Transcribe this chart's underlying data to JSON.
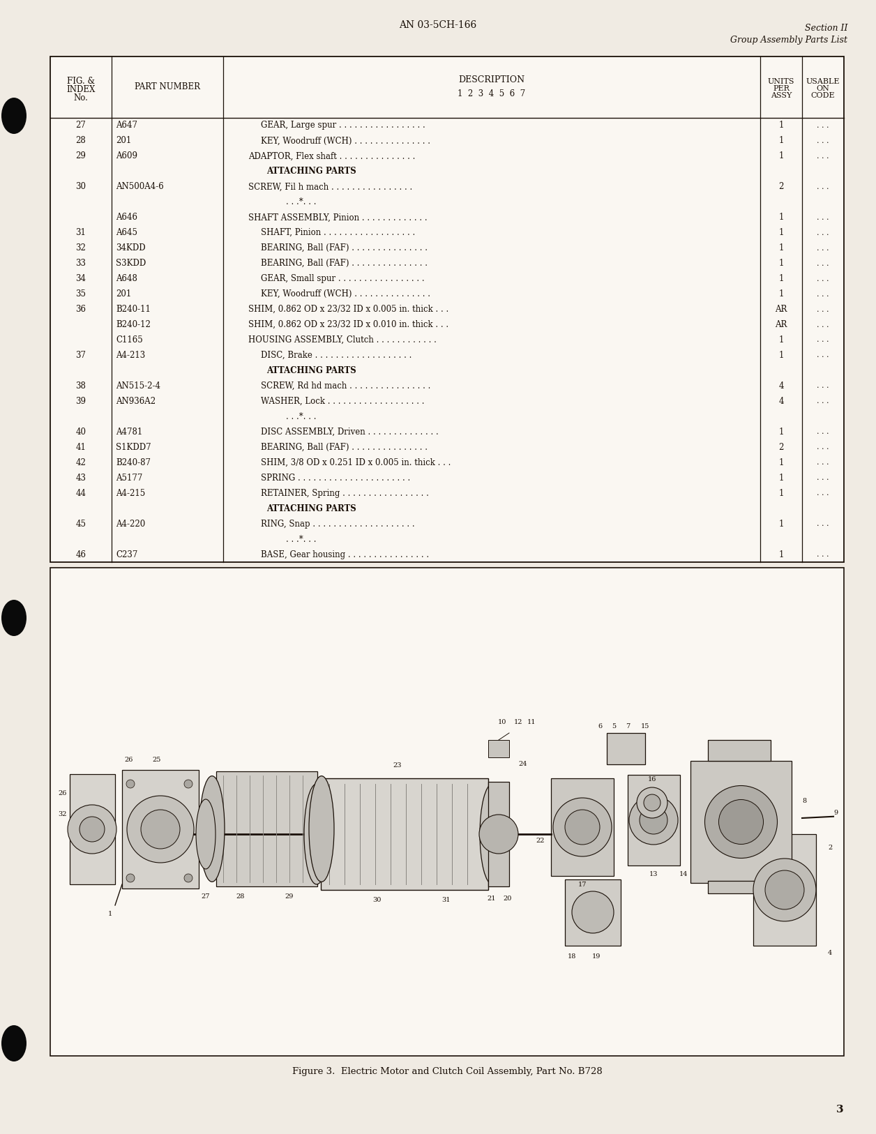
{
  "page_bg": "#f0ebe3",
  "table_bg": "#faf7f2",
  "header_doc_num": "AN 03-5CH-166",
  "header_section": "Section II",
  "header_section_sub": "Group Assembly Parts List",
  "page_number": "3",
  "rows": [
    {
      "fig": "27",
      "part": "A647",
      "ind": 3,
      "desc": "GEAR, Large spur . . . . . . . . . . . . . . . . .",
      "units": "1",
      "usable": ". . ."
    },
    {
      "fig": "28",
      "part": "201",
      "ind": 3,
      "desc": "KEY, Woodruff (WCH) . . . . . . . . . . . . . . .",
      "units": "1",
      "usable": ". . ."
    },
    {
      "fig": "29",
      "part": "A609",
      "ind": 2,
      "desc": "ADAPTOR, Flex shaft . . . . . . . . . . . . . . .",
      "units": "1",
      "usable": ". . ."
    },
    {
      "fig": "",
      "part": "",
      "ind": 4,
      "desc": "ATTACHING PARTS",
      "units": "",
      "usable": ""
    },
    {
      "fig": "30",
      "part": "AN500A4-6",
      "ind": 2,
      "desc": "SCREW, Fil h mach . . . . . . . . . . . . . . . .",
      "units": "2",
      "usable": ". . ."
    },
    {
      "fig": "",
      "part": "",
      "ind": 0,
      "desc": "---*---",
      "units": "",
      "usable": ""
    },
    {
      "fig": "",
      "part": "A646",
      "ind": 2,
      "desc": "SHAFT ASSEMBLY, Pinion . . . . . . . . . . . . .",
      "units": "1",
      "usable": ". . ."
    },
    {
      "fig": "31",
      "part": "A645",
      "ind": 3,
      "desc": "SHAFT, Pinion . . . . . . . . . . . . . . . . . .",
      "units": "1",
      "usable": ". . ."
    },
    {
      "fig": "32",
      "part": "34KDD",
      "ind": 3,
      "desc": "BEARING, Ball (FAF) . . . . . . . . . . . . . . .",
      "units": "1",
      "usable": ". . ."
    },
    {
      "fig": "33",
      "part": "S3KDD",
      "ind": 3,
      "desc": "BEARING, Ball (FAF) . . . . . . . . . . . . . . .",
      "units": "1",
      "usable": ". . ."
    },
    {
      "fig": "34",
      "part": "A648",
      "ind": 3,
      "desc": "GEAR, Small spur . . . . . . . . . . . . . . . . .",
      "units": "1",
      "usable": ". . ."
    },
    {
      "fig": "35",
      "part": "201",
      "ind": 3,
      "desc": "KEY, Woodruff (WCH) . . . . . . . . . . . . . . .",
      "units": "1",
      "usable": ". . ."
    },
    {
      "fig": "36",
      "part": "B240-11",
      "ind": 2,
      "desc": "SHIM, 0.862 OD x 23/32 ID x 0.005 in. thick . . .",
      "units": "AR",
      "usable": ". . ."
    },
    {
      "fig": "",
      "part": "B240-12",
      "ind": 2,
      "desc": "SHIM, 0.862 OD x 23/32 ID x 0.010 in. thick . . .",
      "units": "AR",
      "usable": ". . ."
    },
    {
      "fig": "",
      "part": "C1165",
      "ind": 2,
      "desc": "HOUSING ASSEMBLY, Clutch . . . . . . . . . . . .",
      "units": "1",
      "usable": ". . ."
    },
    {
      "fig": "37",
      "part": "A4-213",
      "ind": 3,
      "desc": "DISC, Brake . . . . . . . . . . . . . . . . . . .",
      "units": "1",
      "usable": ". . ."
    },
    {
      "fig": "",
      "part": "",
      "ind": 4,
      "desc": "ATTACHING PARTS",
      "units": "",
      "usable": ""
    },
    {
      "fig": "38",
      "part": "AN515-2-4",
      "ind": 3,
      "desc": "SCREW, Rd hd mach . . . . . . . . . . . . . . . .",
      "units": "4",
      "usable": ". . ."
    },
    {
      "fig": "39",
      "part": "AN936A2",
      "ind": 3,
      "desc": "WASHER, Lock . . . . . . . . . . . . . . . . . . .",
      "units": "4",
      "usable": ". . ."
    },
    {
      "fig": "",
      "part": "",
      "ind": 0,
      "desc": "---*---",
      "units": "",
      "usable": ""
    },
    {
      "fig": "40",
      "part": "A4781",
      "ind": 3,
      "desc": "DISC ASSEMBLY, Driven . . . . . . . . . . . . . .",
      "units": "1",
      "usable": ". . ."
    },
    {
      "fig": "41",
      "part": "S1KDD7",
      "ind": 3,
      "desc": "BEARING, Ball (FAF) . . . . . . . . . . . . . . .",
      "units": "2",
      "usable": ". . ."
    },
    {
      "fig": "42",
      "part": "B240-87",
      "ind": 3,
      "desc": "SHIM, 3/8 OD x 0.251 ID x 0.005 in. thick . . .",
      "units": "1",
      "usable": ". . ."
    },
    {
      "fig": "43",
      "part": "A5177",
      "ind": 3,
      "desc": "SPRING . . . . . . . . . . . . . . . . . . . . . .",
      "units": "1",
      "usable": ". . ."
    },
    {
      "fig": "44",
      "part": "A4-215",
      "ind": 3,
      "desc": "RETAINER, Spring . . . . . . . . . . . . . . . . .",
      "units": "1",
      "usable": ". . ."
    },
    {
      "fig": "",
      "part": "",
      "ind": 4,
      "desc": "ATTACHING PARTS",
      "units": "",
      "usable": ""
    },
    {
      "fig": "45",
      "part": "A4-220",
      "ind": 3,
      "desc": "RING, Snap . . . . . . . . . . . . . . . . . . . .",
      "units": "1",
      "usable": ". . ."
    },
    {
      "fig": "",
      "part": "",
      "ind": 0,
      "desc": "---*---",
      "units": "",
      "usable": ""
    },
    {
      "fig": "46",
      "part": "C237",
      "ind": 3,
      "desc": "BASE, Gear housing . . . . . . . . . . . . . . . .",
      "units": "1",
      "usable": ". . ."
    }
  ],
  "figure_caption": "Figure 3.  Electric Motor and Clutch Coil Assembly, Part No. B728"
}
